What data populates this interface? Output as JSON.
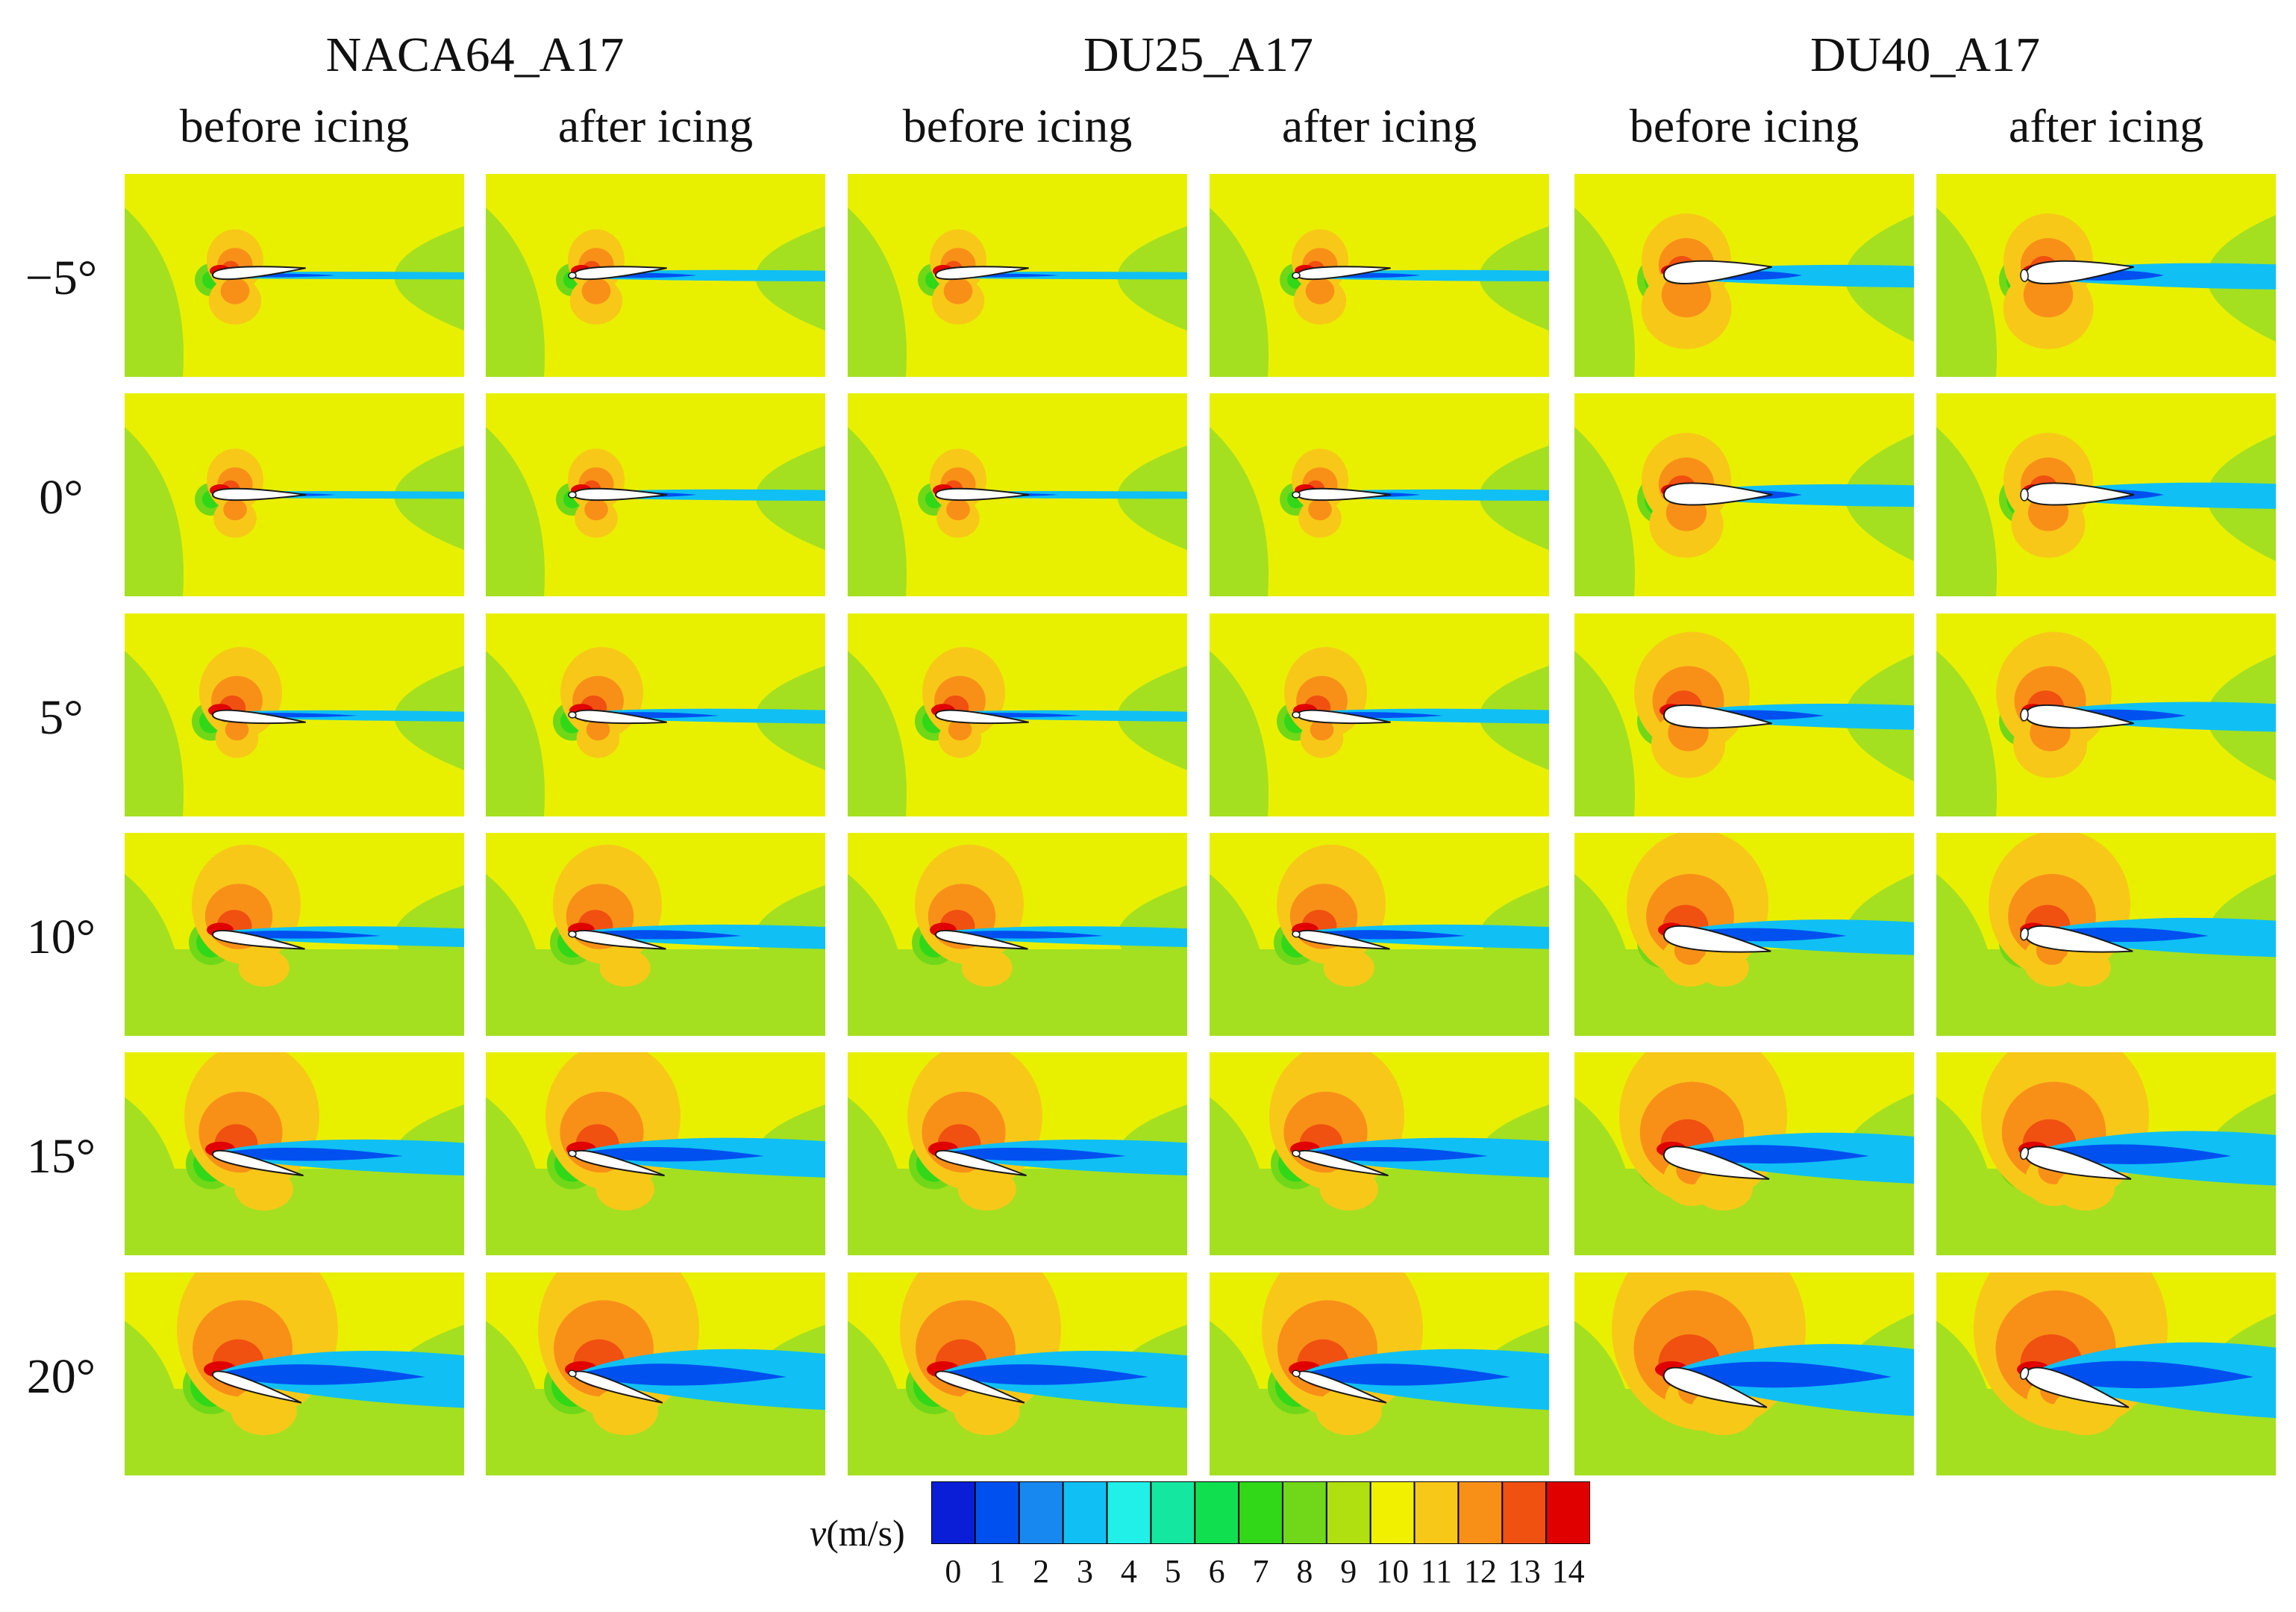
{
  "airfoils": [
    {
      "name": "NACA64_A17",
      "columns": [
        "before icing",
        "after icing"
      ]
    },
    {
      "name": "DU25_A17",
      "columns": [
        "before icing",
        "after icing"
      ]
    },
    {
      "name": "DU40_A17",
      "columns": [
        "before icing",
        "after icing"
      ]
    }
  ],
  "angles_of_attack": [
    "−5°",
    "0°",
    "5°",
    "10°",
    "15°",
    "20°"
  ],
  "colorbar": {
    "label_symbol": "v",
    "label_unit": "(m/s)",
    "ticks": [
      "0",
      "1",
      "2",
      "3",
      "4",
      "5",
      "6",
      "7",
      "8",
      "9",
      "10",
      "11",
      "12",
      "13",
      "14"
    ],
    "colors": [
      "#0a1ed8",
      "#0050f0",
      "#1688f0",
      "#10c0f4",
      "#20f0e8",
      "#14e8a0",
      "#10e050",
      "#30d818",
      "#70d818",
      "#b0e010",
      "#f0f000",
      "#f8c818",
      "#f89018",
      "#f05010",
      "#e00000"
    ]
  },
  "field_colors": {
    "freestream": "#e8f000",
    "low_speed": "#a4e020",
    "mid_speed": "#70d818",
    "suction": "#f8c818",
    "suction_strong": "#f89018",
    "suction_peak": "#f05010",
    "peak": "#e00000",
    "wake": "#10c0f4",
    "wake_core": "#0050f0",
    "stagnation": "#30d818"
  }
}
